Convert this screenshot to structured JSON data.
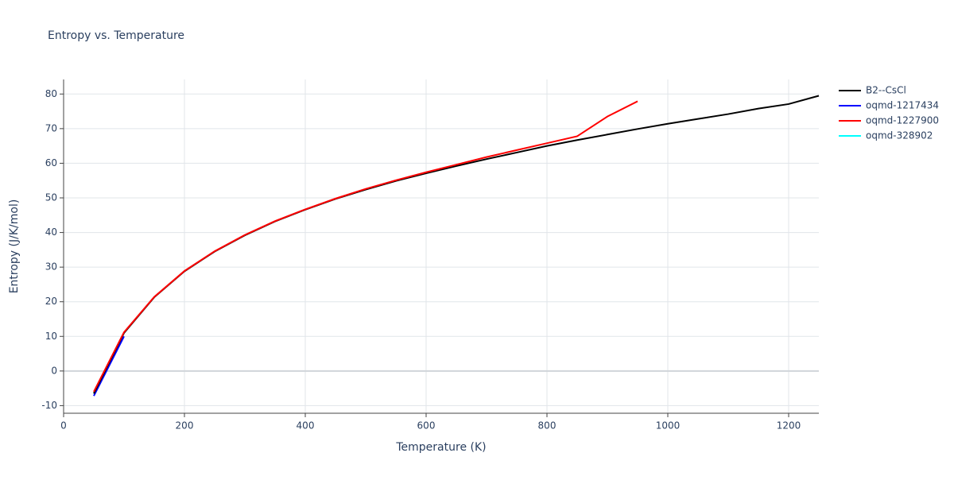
{
  "chart_data": {
    "type": "line",
    "title": "Entropy vs. Temperature",
    "x_label": "Temperature (K)",
    "y_label": "Entropy (J/K/mol)",
    "xlim": [
      0,
      1250
    ],
    "ylim": [
      -12.2,
      84.2
    ],
    "xticks": [
      0,
      200,
      400,
      600,
      800,
      1000,
      1200
    ],
    "yticks": [
      -10,
      0,
      10,
      20,
      30,
      40,
      50,
      60,
      70,
      80
    ],
    "grid": true,
    "legend": "right",
    "series": [
      {
        "name": "B2--CsCl",
        "color": "#000000",
        "x": [
          50,
          100,
          150,
          200,
          250,
          300,
          350,
          400,
          450,
          500,
          550,
          600,
          650,
          700,
          750,
          800,
          850,
          900,
          950,
          1000,
          1050,
          1100,
          1150,
          1200,
          1250
        ],
        "values": [
          -6.5,
          11,
          21.3,
          28.8,
          34.5,
          39.2,
          43.2,
          46.6,
          49.7,
          52.4,
          54.9,
          57.1,
          59.2,
          61.2,
          63.1,
          65.0,
          66.7,
          68.3,
          69.9,
          71.4,
          72.8,
          74.2,
          75.8,
          77.1,
          79.5
        ]
      },
      {
        "name": "oqmd-1217434",
        "color": "#0000ff",
        "x": [
          50,
          100
        ],
        "values": [
          -7.2,
          10.0
        ]
      },
      {
        "name": "oqmd-1227900",
        "color": "#ff0000",
        "x": [
          50,
          100,
          150,
          200,
          250,
          300,
          350,
          400,
          450,
          500,
          550,
          600,
          650,
          700,
          750,
          800,
          850,
          900,
          950
        ],
        "values": [
          -6.0,
          11.2,
          21.4,
          28.9,
          34.6,
          39.3,
          43.3,
          46.7,
          49.8,
          52.6,
          55.1,
          57.4,
          59.6,
          61.8,
          63.8,
          65.8,
          67.8,
          73.5,
          77.9
        ]
      },
      {
        "name": "oqmd-328902",
        "color": "#00ffff",
        "x": [
          50,
          100
        ],
        "values": [
          -6.5,
          11
        ]
      }
    ]
  }
}
